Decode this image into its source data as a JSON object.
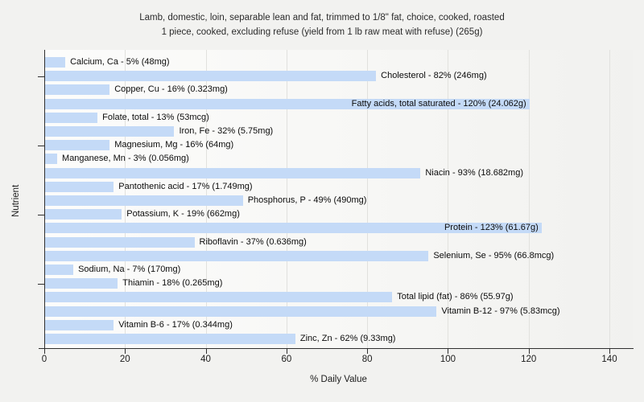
{
  "title": {
    "line1": "Lamb, domestic, loin, separable lean and fat, trimmed to 1/8\" fat, choice, cooked, roasted",
    "line2": "1 piece, cooked, excluding refuse (yield from 1 lb raw meat with refuse) (265g)"
  },
  "chart_data": {
    "type": "bar",
    "orientation": "horizontal",
    "xlabel": "% Daily Value",
    "ylabel": "Nutrient",
    "xlim": [
      0,
      140
    ],
    "xticks": [
      0,
      20,
      40,
      60,
      80,
      100,
      120,
      140
    ],
    "grid": true,
    "bar_color": "#c4daf7",
    "bars": [
      {
        "category": "Calcium, Ca",
        "value": 5,
        "amount": "48mg",
        "label": "Calcium, Ca - 5% (48mg)"
      },
      {
        "category": "Cholesterol",
        "value": 82,
        "amount": "246mg",
        "label": "Cholesterol - 82% (246mg)"
      },
      {
        "category": "Copper, Cu",
        "value": 16,
        "amount": "0.323mg",
        "label": "Copper, Cu - 16% (0.323mg)"
      },
      {
        "category": "Fatty acids, total saturated",
        "value": 120,
        "amount": "24.062g",
        "label": "Fatty acids, total saturated - 120% (24.062g)"
      },
      {
        "category": "Folate, total",
        "value": 13,
        "amount": "53mcg",
        "label": "Folate, total - 13% (53mcg)"
      },
      {
        "category": "Iron, Fe",
        "value": 32,
        "amount": "5.75mg",
        "label": "Iron, Fe - 32% (5.75mg)"
      },
      {
        "category": "Magnesium, Mg",
        "value": 16,
        "amount": "64mg",
        "label": "Magnesium, Mg - 16% (64mg)"
      },
      {
        "category": "Manganese, Mn",
        "value": 3,
        "amount": "0.056mg",
        "label": "Manganese, Mn - 3% (0.056mg)"
      },
      {
        "category": "Niacin",
        "value": 93,
        "amount": "18.682mg",
        "label": "Niacin - 93% (18.682mg)"
      },
      {
        "category": "Pantothenic acid",
        "value": 17,
        "amount": "1.749mg",
        "label": "Pantothenic acid - 17% (1.749mg)"
      },
      {
        "category": "Phosphorus, P",
        "value": 49,
        "amount": "490mg",
        "label": "Phosphorus, P - 49% (490mg)"
      },
      {
        "category": "Potassium, K",
        "value": 19,
        "amount": "662mg",
        "label": "Potassium, K - 19% (662mg)"
      },
      {
        "category": "Protein",
        "value": 123,
        "amount": "61.67g",
        "label": "Protein - 123% (61.67g)"
      },
      {
        "category": "Riboflavin",
        "value": 37,
        "amount": "0.636mg",
        "label": "Riboflavin - 37% (0.636mg)"
      },
      {
        "category": "Selenium, Se",
        "value": 95,
        "amount": "66.8mcg",
        "label": "Selenium, Se - 95% (66.8mcg)"
      },
      {
        "category": "Sodium, Na",
        "value": 7,
        "amount": "170mg",
        "label": "Sodium, Na - 7% (170mg)"
      },
      {
        "category": "Thiamin",
        "value": 18,
        "amount": "0.265mg",
        "label": "Thiamin - 18% (0.265mg)"
      },
      {
        "category": "Total lipid (fat)",
        "value": 86,
        "amount": "55.97g",
        "label": "Total lipid (fat) - 86% (55.97g)"
      },
      {
        "category": "Vitamin B-12",
        "value": 97,
        "amount": "5.83mcg",
        "label": "Vitamin B-12 - 97% (5.83mcg)"
      },
      {
        "category": "Vitamin B-6",
        "value": 17,
        "amount": "0.344mg",
        "label": "Vitamin B-6 - 17% (0.344mg)"
      },
      {
        "category": "Zinc, Zn",
        "value": 62,
        "amount": "9.33mg",
        "label": "Zinc, Zn - 62% (9.33mg)"
      }
    ]
  }
}
